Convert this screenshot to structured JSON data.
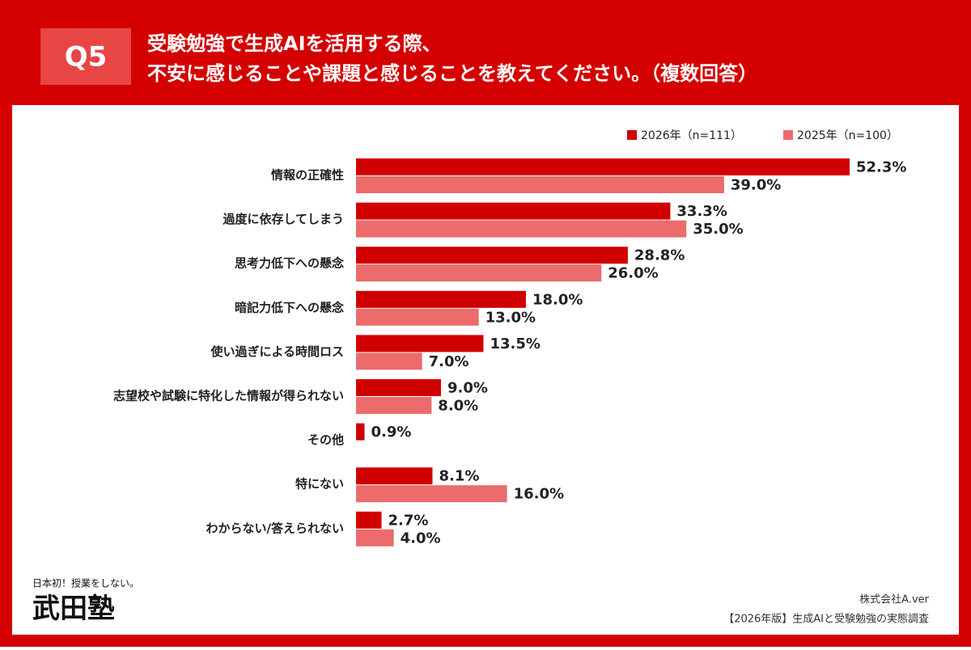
{
  "header": {
    "badge": "Q5",
    "title_lines": [
      "受験勉強で生成AIを活用する際、",
      "不安に感じることや課題と感じることを教えてください。（複数回答）"
    ]
  },
  "chart_data": {
    "type": "bar",
    "orientation": "horizontal",
    "categories": [
      "情報の正確性",
      "過度に依存してしまう",
      "思考力低下への懸念",
      "暗記力低下への懸念",
      "使い過ぎによる時間ロス",
      "志望校や試験に特化した情報が得られない",
      "その他",
      "特にない",
      "わからない/答えられない"
    ],
    "series": [
      {
        "name": "2026年（n=111）",
        "color": "#d10000",
        "values": [
          52.3,
          33.3,
          28.8,
          18.0,
          13.5,
          9.0,
          0.9,
          8.1,
          2.7
        ],
        "value_labels": [
          "52.3%",
          "33.3%",
          "28.8%",
          "18.0%",
          "13.5%",
          "9.0%",
          "0.9%",
          "8.1%",
          "2.7%"
        ]
      },
      {
        "name": "2025年（n=100）",
        "color": "#ec6b6b",
        "values": [
          39.0,
          35.0,
          26.0,
          13.0,
          7.0,
          8.0,
          null,
          16.0,
          4.0
        ],
        "value_labels": [
          "39.0%",
          "35.0%",
          "26.0%",
          "13.0%",
          "7.0%",
          "8.0%",
          null,
          "16.0%",
          "4.0%"
        ]
      }
    ]
  },
  "footer": {
    "company": "株式会社A.ver",
    "survey": "【2026年版】生成AIと受験勉強の実態調査"
  },
  "logo": {
    "tagline": "日本初！授業をしない。",
    "name": "武田塾"
  }
}
